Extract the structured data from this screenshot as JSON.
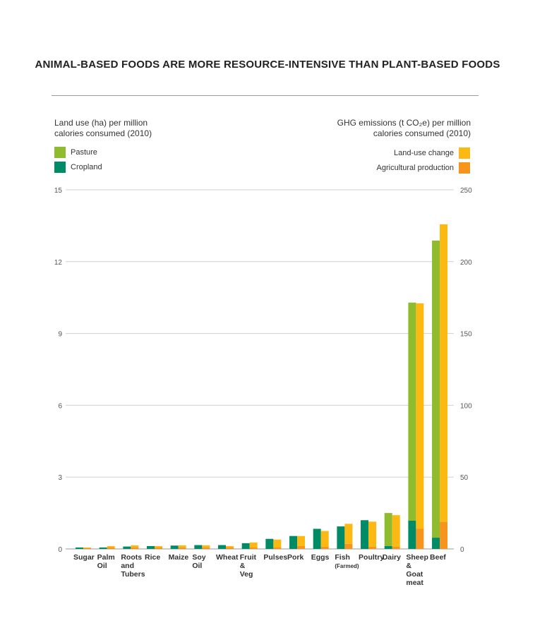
{
  "title": "ANIMAL-BASED FOODS ARE MORE RESOURCE-INTENSIVE THAN PLANT-BASED FOODS",
  "chart_data": {
    "type": "bar",
    "stacked": true,
    "grid": true,
    "categories": [
      "Sugar",
      "Palm Oil",
      "Roots and Tubers",
      "Rice",
      "Maize",
      "Soy Oil",
      "Wheat",
      "Fruit & Veg",
      "Pulses",
      "Pork",
      "Eggs",
      "Fish (Farmed)",
      "Poultry",
      "Dairy",
      "Sheep & Goat meat",
      "Beef"
    ],
    "category_lines": [
      [
        "Sugar"
      ],
      [
        "Palm",
        "Oil"
      ],
      [
        "Roots",
        "and",
        "Tubers"
      ],
      [
        "Rice"
      ],
      [
        "Maize"
      ],
      [
        "Soy",
        "Oil"
      ],
      [
        "Wheat"
      ],
      [
        "Fruit",
        "&",
        "Veg"
      ],
      [
        "Pulses"
      ],
      [
        "Pork"
      ],
      [
        "Eggs"
      ],
      [
        "Fish",
        "(Farmed)"
      ],
      [
        "Poultry"
      ],
      [
        "Dairy"
      ],
      [
        "Sheep",
        "&",
        "Goat",
        "meat"
      ],
      [
        "Beef"
      ]
    ],
    "left_axis": {
      "label_line1": "Land use (ha) per million",
      "label_line2": "calories consumed (2010)",
      "ylim": [
        0,
        15
      ],
      "ticks": [
        "0",
        "3",
        "6",
        "9",
        "12",
        "15"
      ]
    },
    "right_axis": {
      "label_line1": "GHG emissions (t CO₂e) per million",
      "label_line2": "calories consumed (2010)",
      "ylim": [
        0,
        250
      ],
      "ticks": [
        "0",
        "50",
        "100",
        "150",
        "200",
        "250"
      ]
    },
    "land_series": [
      {
        "name": "Cropland",
        "color": "#008b67",
        "values": [
          0.06,
          0.06,
          0.1,
          0.12,
          0.14,
          0.16,
          0.16,
          0.24,
          0.42,
          0.54,
          0.84,
          0.94,
          1.2,
          0.12,
          1.18,
          0.47
        ]
      },
      {
        "name": "Pasture",
        "color": "#8fbc2f",
        "values": [
          0,
          0,
          0,
          0,
          0,
          0,
          0,
          0,
          0,
          0,
          0,
          0,
          0,
          1.38,
          9.11,
          12.41
        ]
      }
    ],
    "ghg_series": [
      {
        "name": "Agricultural production",
        "color": "#f7941d",
        "values": [
          0.5,
          1,
          1,
          1,
          1,
          1,
          1,
          1,
          1,
          2,
          1.5,
          3.5,
          1.5,
          1.5,
          14,
          19
        ]
      },
      {
        "name": "Land-use change",
        "color": "#fdb913",
        "values": [
          0.5,
          1,
          1.5,
          1,
          1.5,
          1.5,
          1,
          3.5,
          5.5,
          7,
          11,
          14,
          17.5,
          22,
          157,
          207
        ]
      }
    ]
  }
}
